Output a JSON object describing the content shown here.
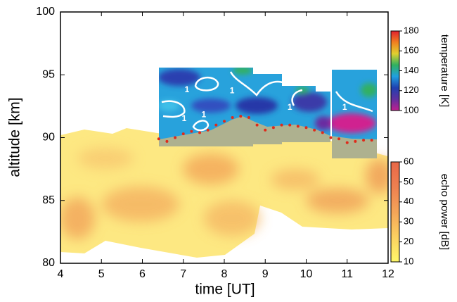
{
  "chart_data": {
    "type": "heatmap",
    "xlabel": "time [UT]",
    "ylabel": "altitude [km]",
    "xlim": [
      4,
      12
    ],
    "xticks": [
      4,
      5,
      6,
      7,
      8,
      9,
      10,
      11,
      12
    ],
    "ylim": [
      80,
      100
    ],
    "yticks": [
      80,
      85,
      90,
      95,
      100
    ],
    "colorbars": [
      {
        "label": "temperature [K]",
        "lim": [
          100,
          180
        ],
        "ticks": [
          100,
          120,
          140,
          160,
          180
        ],
        "colors": [
          "#c0208f",
          "#6030a0",
          "#2040b0",
          "#20a0e0",
          "#30b060",
          "#e0d030",
          "#f08020",
          "#e02030"
        ]
      },
      {
        "label": "echo power [dB]",
        "lim": [
          10,
          60
        ],
        "ticks": [
          10,
          20,
          30,
          40,
          50,
          60
        ],
        "colors": [
          "#fff86a",
          "#fbd060",
          "#f4a458",
          "#ee8050",
          "#e86848"
        ]
      }
    ],
    "series": [
      {
        "color": "#e02a1a",
        "x": [
          6.4,
          6.6,
          6.8,
          7.0,
          7.2,
          7.4,
          7.6,
          7.8,
          8.0,
          8.2,
          8.4,
          8.6,
          8.8,
          9.0,
          9.2,
          9.4,
          9.6,
          9.8,
          10.0,
          10.2,
          10.4,
          10.6,
          10.8,
          11.0,
          11.2,
          11.4,
          11.6
        ],
        "values": [
          89.9,
          89.7,
          90.0,
          90.3,
          90.5,
          90.4,
          90.6,
          91.0,
          91.3,
          91.6,
          91.7,
          91.6,
          91.0,
          90.6,
          90.8,
          91.0,
          91.0,
          90.9,
          90.8,
          90.6,
          90.4,
          90.0,
          89.9,
          89.6,
          89.7,
          89.8,
          89.8
        ]
      }
    ],
    "annotations": [
      {
        "text": "1",
        "x": 7.09,
        "y": 93.8
      },
      {
        "text": "1",
        "x": 7.02,
        "y": 91.5
      },
      {
        "text": "1",
        "x": 7.5,
        "y": 91.8
      },
      {
        "text": "1",
        "x": 8.19,
        "y": 93.7
      },
      {
        "text": "1",
        "x": 9.6,
        "y": 92.4
      },
      {
        "text": "1",
        "x": 10.94,
        "y": 92.4
      }
    ]
  }
}
